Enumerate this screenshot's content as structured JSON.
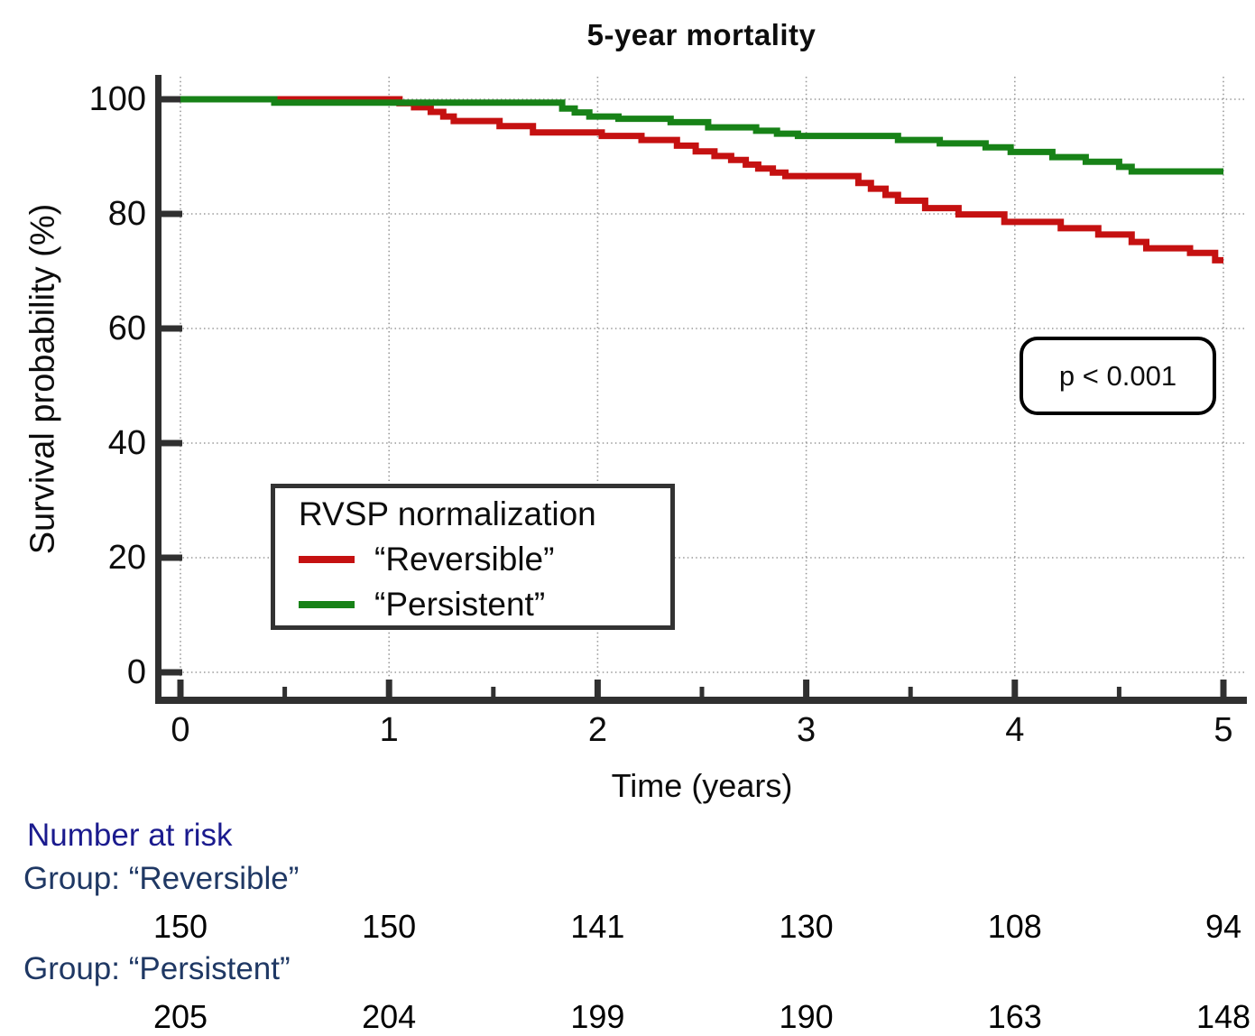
{
  "title": "5-year mortality",
  "axes": {
    "y_label": "Survival probability (%)",
    "x_label": "Time (years)",
    "y_ticks": [
      0,
      20,
      40,
      60,
      80,
      100
    ],
    "x_ticks": [
      0,
      1,
      2,
      3,
      4,
      5
    ],
    "x_minor_ticks": [
      0.5,
      1.5,
      2.5,
      3.5,
      4.5
    ],
    "x_range": [
      0,
      5
    ],
    "y_range": [
      0,
      100
    ]
  },
  "annotation": {
    "p_value": "p < 0.001"
  },
  "legend": {
    "title": "RVSP normalization",
    "items": [
      {
        "label": "“Reversible”",
        "color": "#C51111"
      },
      {
        "label": "“Persistent”",
        "color": "#178217"
      }
    ]
  },
  "risk_table": {
    "header": "Number at risk",
    "groups": [
      {
        "label": "Group: “Reversible”",
        "values": [
          "150",
          "150",
          "141",
          "130",
          "108",
          "94"
        ]
      },
      {
        "label": "Group: “Persistent”",
        "values": [
          "205",
          "204",
          "199",
          "190",
          "163",
          "148"
        ]
      }
    ]
  },
  "colors": {
    "reversible": "#C51111",
    "persistent": "#178217",
    "axis": "#303030",
    "grid": "#999999",
    "risk_header": "#1B1B8E",
    "risk_group_label": "#1F3864"
  },
  "chart_data": {
    "type": "line",
    "subtype": "kaplan-meier-step",
    "title": "5-year mortality",
    "xlabel": "Time (years)",
    "ylabel": "Survival probability (%)",
    "xlim": [
      0,
      5
    ],
    "ylim": [
      0,
      100
    ],
    "grid": "dotted at every major tick, both axes",
    "legend_position": "inside lower-left",
    "annotation": "p < 0.001",
    "series": [
      {
        "id": "reversible",
        "name": "“Reversible”",
        "color": "#C51111",
        "points": [
          [
            0,
            100
          ],
          [
            1.05,
            99.3
          ],
          [
            1.12,
            98.6
          ],
          [
            1.2,
            97.8
          ],
          [
            1.26,
            97.0
          ],
          [
            1.31,
            96.2
          ],
          [
            1.53,
            95.3
          ],
          [
            1.69,
            94.2
          ],
          [
            2.02,
            93.6
          ],
          [
            2.21,
            92.9
          ],
          [
            2.38,
            91.9
          ],
          [
            2.47,
            90.9
          ],
          [
            2.56,
            90.1
          ],
          [
            2.64,
            89.4
          ],
          [
            2.71,
            88.6
          ],
          [
            2.77,
            87.9
          ],
          [
            2.84,
            87.2
          ],
          [
            2.9,
            86.6
          ],
          [
            3.25,
            85.4
          ],
          [
            3.31,
            84.4
          ],
          [
            3.38,
            83.3
          ],
          [
            3.44,
            82.3
          ],
          [
            3.57,
            81.0
          ],
          [
            3.73,
            79.9
          ],
          [
            3.95,
            78.6
          ],
          [
            4.22,
            77.5
          ],
          [
            4.4,
            76.4
          ],
          [
            4.56,
            75.1
          ],
          [
            4.63,
            74.0
          ],
          [
            4.84,
            73.2
          ],
          [
            4.96,
            71.9
          ]
        ]
      },
      {
        "id": "persistent",
        "name": "“Persistent”",
        "color": "#178217",
        "points": [
          [
            0,
            100
          ],
          [
            0.45,
            99.4
          ],
          [
            1.83,
            98.4
          ],
          [
            1.89,
            97.7
          ],
          [
            1.96,
            97.0
          ],
          [
            2.1,
            96.6
          ],
          [
            2.35,
            96.0
          ],
          [
            2.53,
            95.1
          ],
          [
            2.76,
            94.5
          ],
          [
            2.86,
            94.0
          ],
          [
            2.96,
            93.6
          ],
          [
            3.44,
            92.9
          ],
          [
            3.64,
            92.3
          ],
          [
            3.86,
            91.6
          ],
          [
            3.98,
            90.8
          ],
          [
            4.18,
            89.9
          ],
          [
            4.34,
            89.1
          ],
          [
            4.5,
            88.2
          ],
          [
            4.56,
            87.4
          ]
        ]
      }
    ],
    "number_at_risk": {
      "times": [
        0,
        1,
        2,
        3,
        4,
        5
      ],
      "reversible": [
        150,
        150,
        141,
        130,
        108,
        94
      ],
      "persistent": [
        205,
        204,
        199,
        190,
        163,
        148
      ]
    }
  }
}
